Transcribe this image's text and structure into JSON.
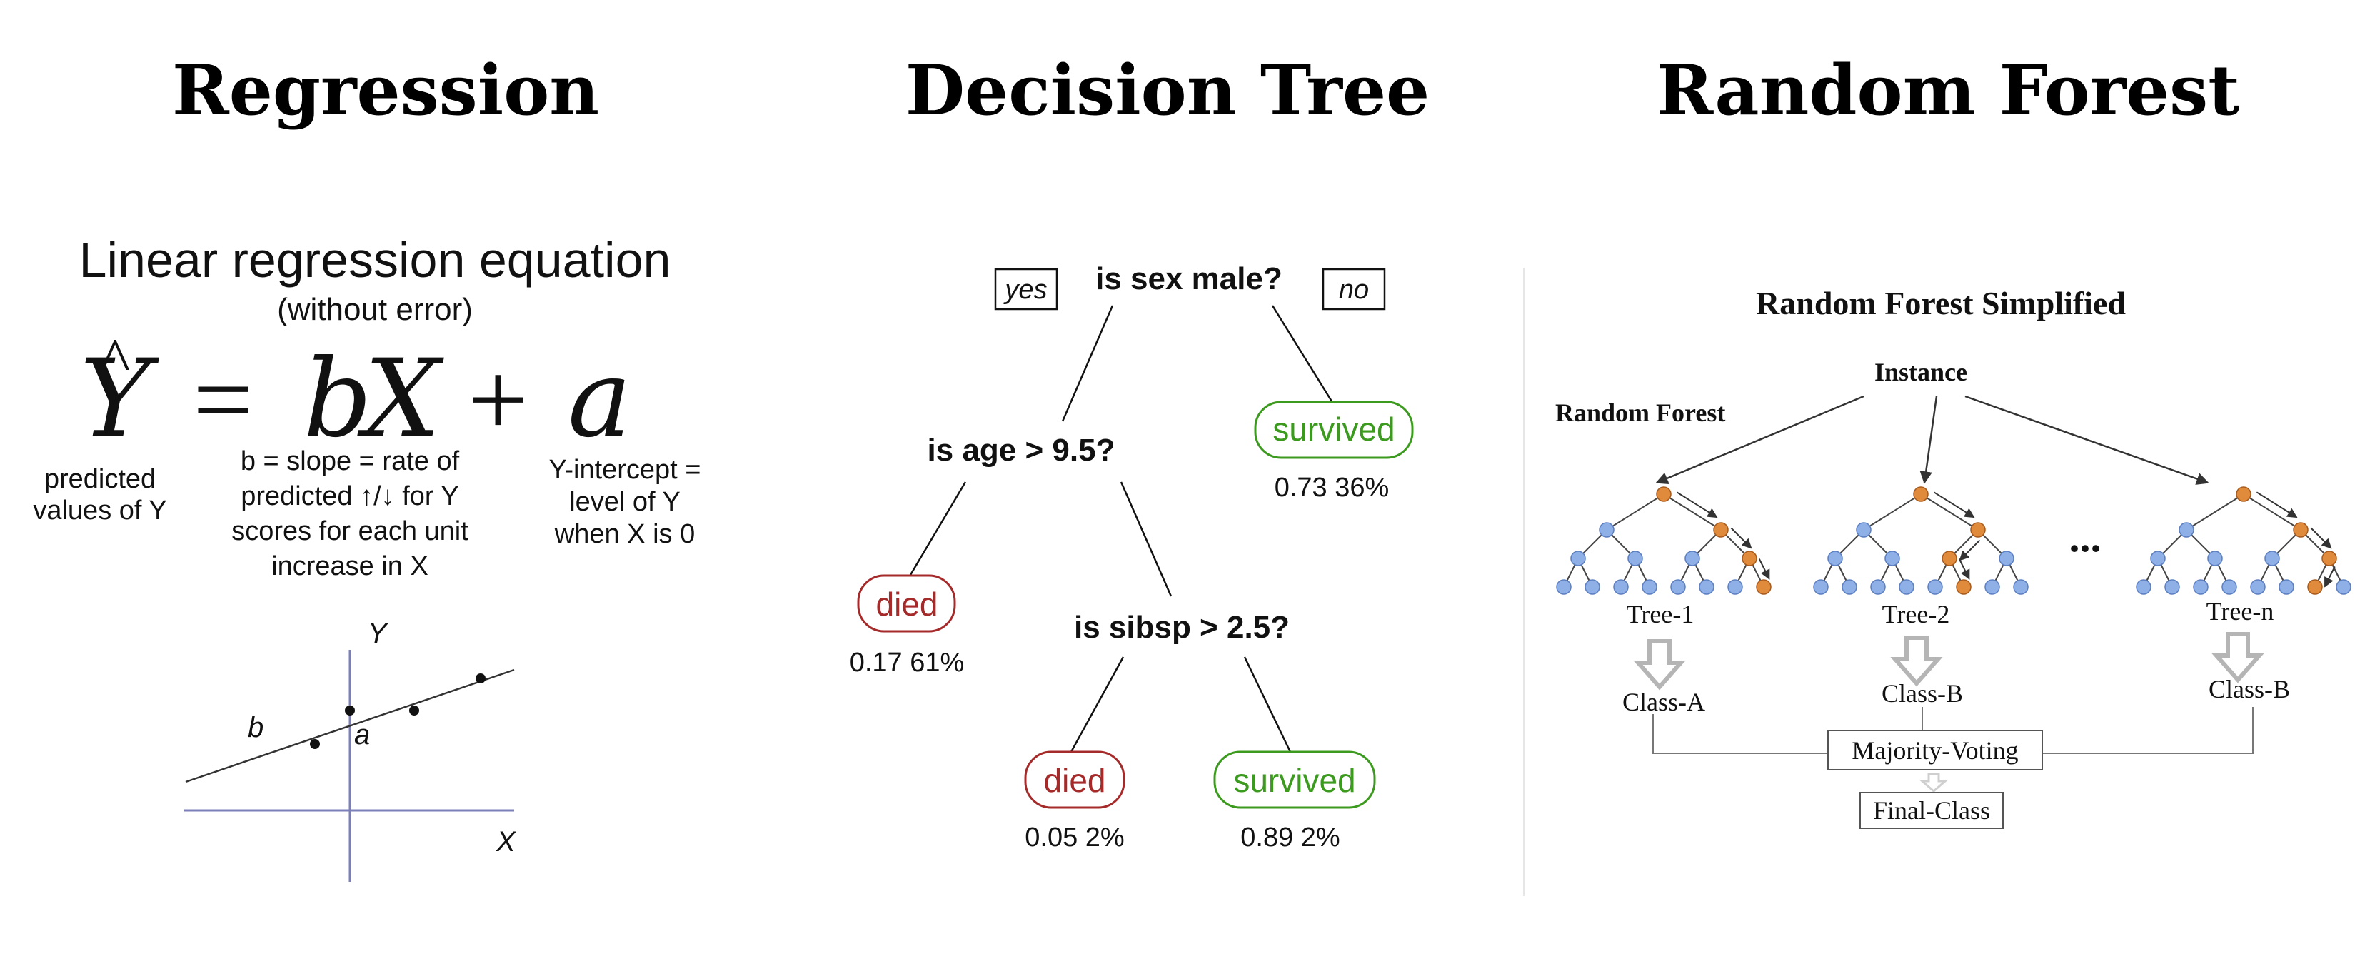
{
  "headings": {
    "regression": "Regression",
    "decision_tree": "Decision Tree",
    "random_forest": "Random Forest"
  },
  "regression": {
    "title": "Linear regression equation",
    "subtitle": "(without error)",
    "equation": {
      "lhs": "Y",
      "hat": "^",
      "equals": "=",
      "b": "b",
      "x": "X",
      "plus": "+",
      "a": "a"
    },
    "labels": {
      "predicted": [
        "predicted",
        "values of Y"
      ],
      "slope": [
        "b = slope = rate of",
        "predicted ↑/↓ for Y",
        "scores for each unit",
        "increase in X"
      ],
      "intercept": [
        "Y-intercept =",
        "level of Y",
        "when X is 0"
      ]
    },
    "graph": {
      "y_axis_label": "Y",
      "x_axis_label": "X",
      "slope_label": "b",
      "intercept_label": "a"
    }
  },
  "decision_tree": {
    "root": "is sex male?",
    "yes": "yes",
    "no": "no",
    "node_age": "is age > 9.5?",
    "node_sibsp": "is sibsp > 2.5?",
    "leaves": [
      {
        "label": "survived",
        "stats": "0.73  36%"
      },
      {
        "label": "died",
        "stats": "0.17  61%"
      },
      {
        "label": "died",
        "stats": "0.05  2%"
      },
      {
        "label": "survived",
        "stats": "0.89  2%"
      }
    ],
    "colors": {
      "died": "#a52a2a",
      "survived": "#3c9a1f"
    }
  },
  "random_forest": {
    "title": "Random Forest Simplified",
    "instance": "Instance",
    "label": "Random Forest",
    "ellipsis": "...",
    "trees": [
      "Tree-1",
      "Tree-2",
      "Tree-n"
    ],
    "classes": [
      "Class-A",
      "Class-B",
      "Class-B"
    ],
    "voting": "Majority-Voting",
    "final": "Final-Class",
    "colors": {
      "node_blue": "#8fb0e6",
      "node_orange": "#e08a3c"
    }
  }
}
